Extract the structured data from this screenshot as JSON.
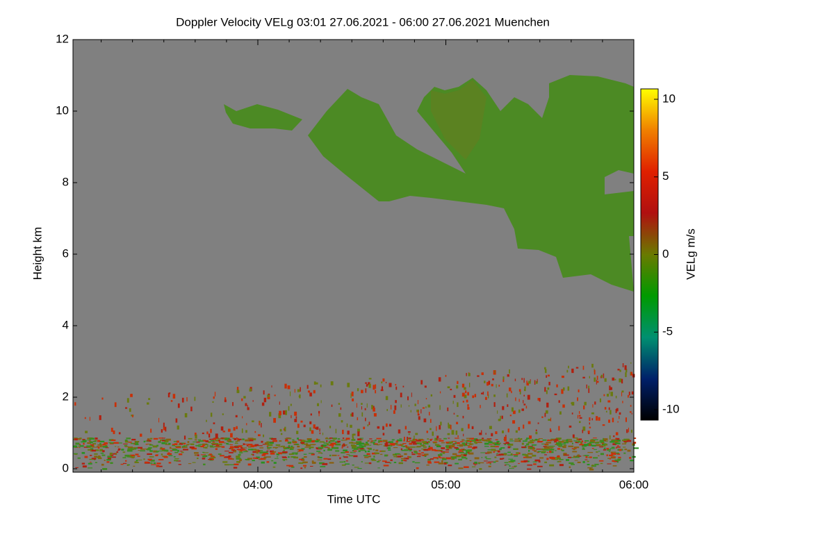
{
  "chart_data": {
    "type": "heatmap",
    "title": "Doppler Velocity VELg   03:01 27.06.2021 - 06:00 27.06.2021 Muenchen",
    "x_label": "Time UTC",
    "y_label": "Height km",
    "xlim": [
      3.0167,
      6
    ],
    "xticks": [
      {
        "value": 4,
        "label": "04:00"
      },
      {
        "value": 5,
        "label": "05:00"
      },
      {
        "value": 6,
        "label": "06:00"
      }
    ],
    "xminorticks": [
      3.1667,
      3.3333,
      3.5,
      3.6667,
      3.8333,
      4.1667,
      4.3333,
      4.5,
      4.6667,
      4.8333,
      5.1667,
      5.3333,
      5.5,
      5.6667,
      5.8333
    ],
    "ylim": [
      0,
      12
    ],
    "yticks": [
      0,
      2,
      4,
      6,
      8,
      10,
      12
    ],
    "colorbar": {
      "label": "VELg m/s",
      "lim": [
        -10.67,
        10.67
      ],
      "ticks": [
        -10,
        -5,
        0,
        5,
        10
      ],
      "colormap": [
        "#000000",
        "#00206a",
        "#009070",
        "#009a00",
        "#6a7a00",
        "#b01010",
        "#e02000",
        "#f08000",
        "#ffff00"
      ]
    },
    "background": "#808080"
  }
}
